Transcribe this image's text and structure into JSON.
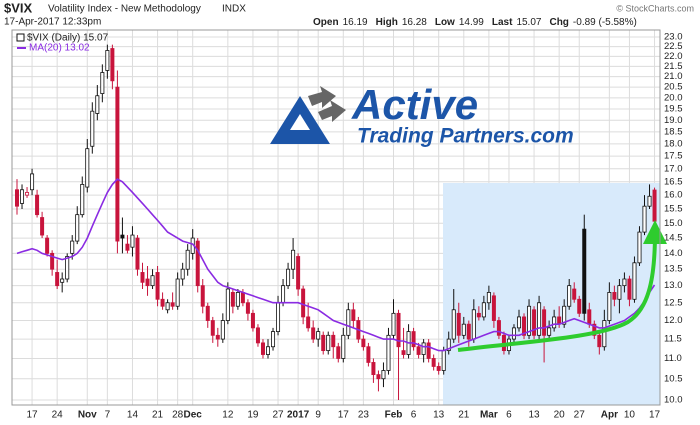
{
  "header": {
    "symbol": "$VIX",
    "name": "Volatility Index - New Methodology",
    "exchange": "INDX",
    "timestamp": "17-Apr-2017 12:33pm",
    "quote": [
      {
        "label": "Open",
        "value": "16.19"
      },
      {
        "label": "High",
        "value": "16.28"
      },
      {
        "label": "Low",
        "value": "14.99"
      },
      {
        "label": "Last",
        "value": "15.07"
      },
      {
        "label": "Chg",
        "value": "-0.89 (-5.58%)"
      }
    ],
    "credit": "© StockCharts.com"
  },
  "logo": {
    "line1": "Active",
    "line2": "Trading Partners.com"
  },
  "chart_data": {
    "type": "candlestick",
    "categories": [
      null,
      null,
      null,
      "17",
      null,
      null,
      null,
      null,
      "24",
      null,
      null,
      null,
      null,
      null,
      "Nov",
      null,
      null,
      null,
      "7",
      null,
      null,
      null,
      null,
      "14",
      null,
      null,
      null,
      null,
      "21",
      null,
      null,
      null,
      "28",
      null,
      null,
      "Dec",
      null,
      null,
      null,
      null,
      null,
      null,
      "12",
      null,
      null,
      null,
      null,
      "19",
      null,
      null,
      null,
      null,
      "27",
      null,
      null,
      null,
      "2017",
      null,
      null,
      null,
      "9",
      null,
      null,
      null,
      null,
      "17",
      null,
      null,
      null,
      "23",
      null,
      null,
      null,
      null,
      null,
      "Feb",
      null,
      null,
      null,
      "6",
      null,
      null,
      null,
      null,
      "13",
      null,
      null,
      null,
      null,
      "21",
      null,
      null,
      null,
      null,
      "Mar",
      null,
      null,
      null,
      "6",
      null,
      null,
      null,
      null,
      "13",
      null,
      null,
      null,
      null,
      "20",
      null,
      null,
      null,
      "27",
      null,
      null,
      null,
      null,
      null,
      "Apr",
      null,
      null,
      null,
      "10",
      null,
      null,
      null,
      null,
      "17"
    ],
    "series": [
      {
        "name": "$VIX (Daily) 15.07",
        "type": "candlestick",
        "up_color": "#111111",
        "down_color": "#c8143c",
        "ohlc": [
          [
            16.2,
            16.6,
            15.3,
            15.6
          ],
          [
            15.7,
            16.4,
            15.5,
            16.2
          ],
          [
            16.0,
            16.3,
            15.9,
            16.1
          ],
          [
            16.2,
            17.0,
            16.0,
            16.8
          ],
          [
            16.0,
            16.2,
            15.2,
            15.3
          ],
          [
            15.2,
            15.4,
            14.5,
            14.6
          ],
          [
            14.5,
            14.6,
            13.9,
            14.0
          ],
          [
            14.0,
            14.1,
            13.3,
            13.5
          ],
          [
            13.4,
            13.8,
            12.9,
            13.0
          ],
          [
            13.1,
            13.4,
            12.8,
            13.2
          ],
          [
            13.2,
            14.0,
            13.1,
            13.9
          ],
          [
            14.0,
            14.6,
            13.8,
            14.4
          ],
          [
            14.4,
            15.6,
            14.3,
            15.3
          ],
          [
            15.3,
            16.7,
            15.2,
            16.4
          ],
          [
            16.3,
            18.2,
            16.1,
            17.8
          ],
          [
            17.9,
            19.8,
            17.6,
            19.4
          ],
          [
            19.3,
            20.6,
            19.0,
            20.1
          ],
          [
            20.2,
            21.6,
            19.8,
            21.2
          ],
          [
            21.3,
            22.6,
            20.9,
            22.3
          ],
          [
            22.4,
            22.6,
            20.4,
            20.8
          ],
          [
            20.5,
            21.3,
            14.0,
            14.4
          ],
          [
            14.6,
            15.2,
            14.0,
            14.5
          ],
          [
            14.3,
            14.6,
            14.0,
            14.1
          ],
          [
            14.2,
            14.9,
            13.9,
            14.6
          ],
          [
            14.5,
            14.6,
            13.3,
            13.5
          ],
          [
            13.4,
            13.7,
            12.9,
            13.1
          ],
          [
            13.2,
            13.6,
            12.7,
            13.0
          ],
          [
            13.0,
            13.5,
            12.9,
            13.3
          ],
          [
            13.4,
            13.6,
            12.4,
            12.6
          ],
          [
            12.6,
            12.8,
            12.3,
            12.4
          ],
          [
            12.3,
            12.6,
            12.2,
            12.5
          ],
          [
            12.5,
            12.8,
            12.3,
            12.4
          ],
          [
            12.4,
            13.4,
            12.3,
            13.2
          ],
          [
            13.2,
            13.7,
            13.0,
            13.5
          ],
          [
            13.5,
            14.3,
            13.3,
            14.1
          ],
          [
            14.0,
            14.8,
            13.8,
            14.5
          ],
          [
            14.4,
            14.5,
            12.8,
            13.0
          ],
          [
            13.0,
            13.2,
            12.2,
            12.4
          ],
          [
            12.4,
            12.5,
            11.8,
            12.0
          ],
          [
            12.0,
            12.1,
            11.4,
            11.6
          ],
          [
            11.6,
            11.8,
            11.3,
            11.5
          ],
          [
            11.5,
            12.2,
            11.4,
            12.0
          ],
          [
            12.0,
            13.1,
            11.9,
            12.9
          ],
          [
            12.8,
            12.9,
            12.2,
            12.4
          ],
          [
            12.4,
            12.9,
            12.3,
            12.8
          ],
          [
            12.8,
            12.9,
            12.4,
            12.5
          ],
          [
            12.5,
            12.6,
            12.0,
            12.2
          ],
          [
            12.2,
            12.3,
            11.7,
            11.8
          ],
          [
            11.8,
            11.9,
            11.3,
            11.4
          ],
          [
            11.4,
            11.5,
            11.0,
            11.1
          ],
          [
            11.1,
            11.5,
            11.0,
            11.3
          ],
          [
            11.3,
            11.8,
            11.2,
            11.7
          ],
          [
            11.7,
            12.7,
            11.6,
            12.5
          ],
          [
            12.5,
            13.2,
            12.4,
            13.0
          ],
          [
            13.0,
            13.7,
            12.9,
            13.5
          ],
          [
            13.5,
            14.5,
            13.2,
            14.1
          ],
          [
            13.9,
            14.0,
            12.7,
            12.9
          ],
          [
            12.9,
            13.0,
            11.9,
            12.1
          ],
          [
            12.1,
            12.5,
            11.7,
            11.8
          ],
          [
            11.8,
            12.0,
            11.4,
            11.5
          ],
          [
            11.5,
            11.8,
            11.3,
            11.7
          ],
          [
            11.6,
            11.7,
            11.1,
            11.2
          ],
          [
            11.2,
            11.7,
            11.1,
            11.6
          ],
          [
            11.6,
            11.7,
            11.0,
            11.3
          ],
          [
            11.3,
            11.4,
            10.9,
            11.0
          ],
          [
            11.0,
            11.8,
            10.9,
            11.6
          ],
          [
            11.6,
            12.5,
            11.5,
            12.3
          ],
          [
            12.3,
            12.5,
            11.8,
            12.0
          ],
          [
            12.0,
            12.1,
            11.4,
            11.5
          ],
          [
            11.5,
            11.6,
            11.2,
            11.3
          ],
          [
            11.3,
            11.4,
            10.8,
            10.9
          ],
          [
            10.9,
            11.0,
            10.4,
            10.6
          ],
          [
            10.6,
            10.7,
            10.2,
            10.5
          ],
          [
            10.5,
            10.9,
            10.3,
            10.7
          ],
          [
            10.7,
            11.8,
            10.6,
            11.6
          ],
          [
            11.6,
            12.6,
            11.5,
            12.2
          ],
          [
            12.2,
            12.3,
            10.0,
            11.3
          ],
          [
            11.2,
            11.8,
            11.0,
            11.1
          ],
          [
            11.1,
            11.9,
            11.0,
            11.7
          ],
          [
            11.7,
            11.8,
            11.2,
            11.3
          ],
          [
            11.3,
            11.4,
            11.0,
            11.1
          ],
          [
            11.1,
            11.5,
            10.9,
            11.4
          ],
          [
            11.4,
            11.5,
            10.9,
            11.0
          ],
          [
            11.0,
            11.1,
            10.7,
            10.8
          ],
          [
            10.8,
            10.9,
            10.6,
            10.7
          ],
          [
            10.7,
            11.3,
            10.6,
            11.2
          ],
          [
            11.2,
            11.7,
            11.1,
            11.5
          ],
          [
            11.5,
            12.9,
            11.4,
            12.3
          ],
          [
            12.2,
            12.5,
            11.4,
            11.6
          ],
          [
            11.6,
            12.1,
            11.5,
            11.9
          ],
          [
            11.9,
            12.0,
            11.3,
            11.5
          ],
          [
            11.5,
            12.6,
            11.4,
            12.3
          ],
          [
            12.2,
            12.4,
            12.0,
            12.1
          ],
          [
            12.1,
            12.7,
            12.0,
            12.5
          ],
          [
            12.5,
            13.0,
            12.3,
            12.8
          ],
          [
            12.7,
            12.8,
            11.8,
            12.0
          ],
          [
            12.0,
            12.1,
            11.5,
            11.6
          ],
          [
            11.6,
            11.7,
            11.1,
            11.2
          ],
          [
            11.2,
            11.6,
            11.1,
            11.5
          ],
          [
            11.5,
            11.9,
            11.4,
            11.8
          ],
          [
            11.8,
            12.3,
            11.7,
            12.1
          ],
          [
            12.1,
            12.2,
            11.5,
            11.6
          ],
          [
            11.6,
            12.6,
            11.5,
            12.4
          ],
          [
            12.3,
            12.4,
            11.5,
            11.6
          ],
          [
            11.6,
            12.7,
            11.5,
            12.5
          ],
          [
            12.3,
            12.4,
            10.9,
            11.6
          ],
          [
            11.6,
            12.0,
            11.5,
            11.8
          ],
          [
            11.8,
            12.3,
            11.7,
            12.1
          ],
          [
            12.1,
            12.4,
            11.8,
            11.9
          ],
          [
            11.9,
            12.6,
            11.8,
            12.4
          ],
          [
            12.4,
            13.2,
            12.3,
            13.0
          ],
          [
            12.9,
            13.1,
            12.5,
            12.6
          ],
          [
            12.6,
            12.7,
            12.1,
            12.2
          ],
          [
            14.8,
            15.3,
            12.0,
            12.2
          ],
          [
            12.3,
            12.5,
            11.8,
            11.9
          ],
          [
            11.9,
            12.0,
            11.5,
            11.6
          ],
          [
            11.6,
            11.7,
            11.1,
            11.3
          ],
          [
            11.3,
            12.3,
            11.2,
            12.0
          ],
          [
            12.0,
            13.1,
            11.9,
            12.8
          ],
          [
            12.8,
            13.0,
            12.4,
            12.6
          ],
          [
            12.6,
            13.2,
            12.2,
            13.0
          ],
          [
            13.0,
            13.4,
            12.8,
            13.2
          ],
          [
            13.2,
            13.3,
            12.4,
            12.6
          ],
          [
            12.6,
            13.9,
            12.5,
            13.7
          ],
          [
            13.7,
            14.9,
            13.6,
            14.7
          ],
          [
            14.7,
            16.0,
            14.6,
            15.6
          ],
          [
            15.6,
            16.4,
            15.5,
            15.96
          ],
          [
            16.19,
            16.28,
            14.99,
            15.07
          ]
        ]
      },
      {
        "name": "MA(20) 13.02",
        "type": "line",
        "color": "#8a2be2",
        "values": [
          14.0,
          14.05,
          14.1,
          14.15,
          14.1,
          14.0,
          13.95,
          13.9,
          13.85,
          13.8,
          13.85,
          13.9,
          14.0,
          14.2,
          14.5,
          14.9,
          15.3,
          15.7,
          16.1,
          16.4,
          16.6,
          16.5,
          16.3,
          16.1,
          15.9,
          15.7,
          15.5,
          15.3,
          15.1,
          14.9,
          14.7,
          14.6,
          14.5,
          14.4,
          14.35,
          14.3,
          14.1,
          13.8,
          13.5,
          13.3,
          13.1,
          13.0,
          12.95,
          12.9,
          12.85,
          12.8,
          12.75,
          12.7,
          12.65,
          12.6,
          12.55,
          12.5,
          12.5,
          12.5,
          12.5,
          12.5,
          12.5,
          12.45,
          12.4,
          12.35,
          12.3,
          12.2,
          12.1,
          12.0,
          11.95,
          11.9,
          11.85,
          11.8,
          11.75,
          11.7,
          11.65,
          11.6,
          11.55,
          11.5,
          11.5,
          11.5,
          11.45,
          11.45,
          11.4,
          11.4,
          11.35,
          11.3,
          11.3,
          11.25,
          11.2,
          11.2,
          11.25,
          11.3,
          11.35,
          11.4,
          11.45,
          11.5,
          11.55,
          11.6,
          11.65,
          11.7,
          11.7,
          11.65,
          11.6,
          11.6,
          11.6,
          11.65,
          11.7,
          11.75,
          11.8,
          11.8,
          11.85,
          11.9,
          11.9,
          11.95,
          12.0,
          12.05,
          12.0,
          11.95,
          11.9,
          11.85,
          11.8,
          11.8,
          11.85,
          11.9,
          11.95,
          12.0,
          12.1,
          12.2,
          12.35,
          12.55,
          12.8,
          13.02
        ]
      }
    ],
    "ylim": [
      10,
      23
    ],
    "yticks": [
      {
        "value": 10,
        "label": "10.0"
      },
      10.5,
      {
        "value": 11,
        "label": "11.0"
      },
      11.5,
      {
        "value": 12,
        "label": "12.0"
      },
      12.5,
      {
        "value": 13,
        "label": "13.0"
      },
      13.5,
      {
        "value": 14,
        "label": "14.0"
      },
      14.5,
      {
        "value": 15,
        "label": "15.0"
      },
      15.5,
      {
        "value": 16,
        "label": "16.0"
      },
      16.5,
      {
        "value": 17,
        "label": "17.0"
      },
      17.5,
      {
        "value": 18,
        "label": "18.0"
      },
      18.5,
      {
        "value": 19,
        "label": "19.0"
      },
      19.5,
      {
        "value": 20,
        "label": "20.0"
      },
      20.5,
      {
        "value": 21,
        "label": "21.0"
      },
      21.5,
      {
        "value": 22,
        "label": "22.0"
      },
      22.5,
      {
        "value": 23,
        "label": "23.0"
      }
    ],
    "log": true,
    "grid": true
  }
}
